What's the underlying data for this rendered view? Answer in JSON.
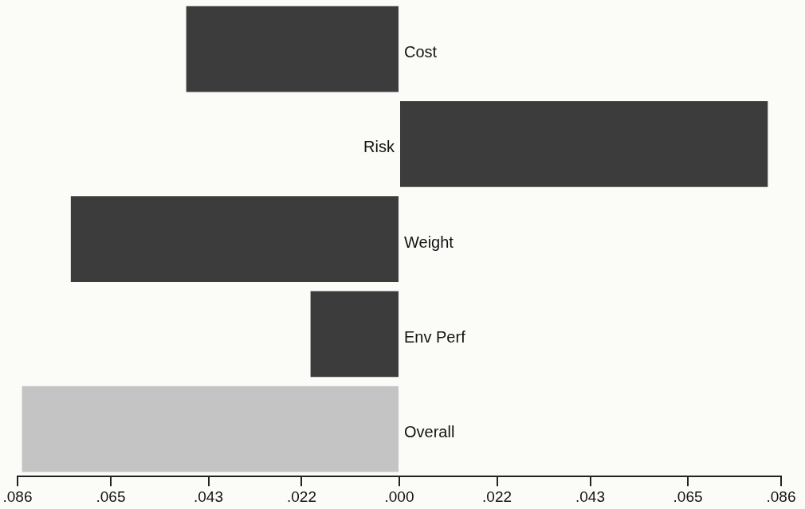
{
  "chart_data": {
    "type": "bar",
    "orientation": "horizontal",
    "categories": [
      "Cost",
      "Risk",
      "Weight",
      "Env Perf",
      "Overall"
    ],
    "values": [
      -0.048,
      0.083,
      -0.074,
      -0.02,
      -0.085
    ],
    "colors": [
      "#3c3c3c",
      "#3c3c3c",
      "#3c3c3c",
      "#3c3c3c",
      "#c4c4c4"
    ],
    "xlim": [
      -0.086,
      0.086
    ],
    "xticks": [
      {
        "value": -0.086,
        "label": ".086"
      },
      {
        "value": -0.065,
        "label": ".065"
      },
      {
        "value": -0.043,
        "label": ".043"
      },
      {
        "value": -0.022,
        "label": ".022"
      },
      {
        "value": 0,
        "label": ".000"
      },
      {
        "value": 0.022,
        "label": ".022"
      },
      {
        "value": 0.043,
        "label": ".043"
      },
      {
        "value": 0.065,
        "label": ".065"
      },
      {
        "value": 0.086,
        "label": ".086"
      }
    ],
    "grid": false,
    "legend": false
  }
}
